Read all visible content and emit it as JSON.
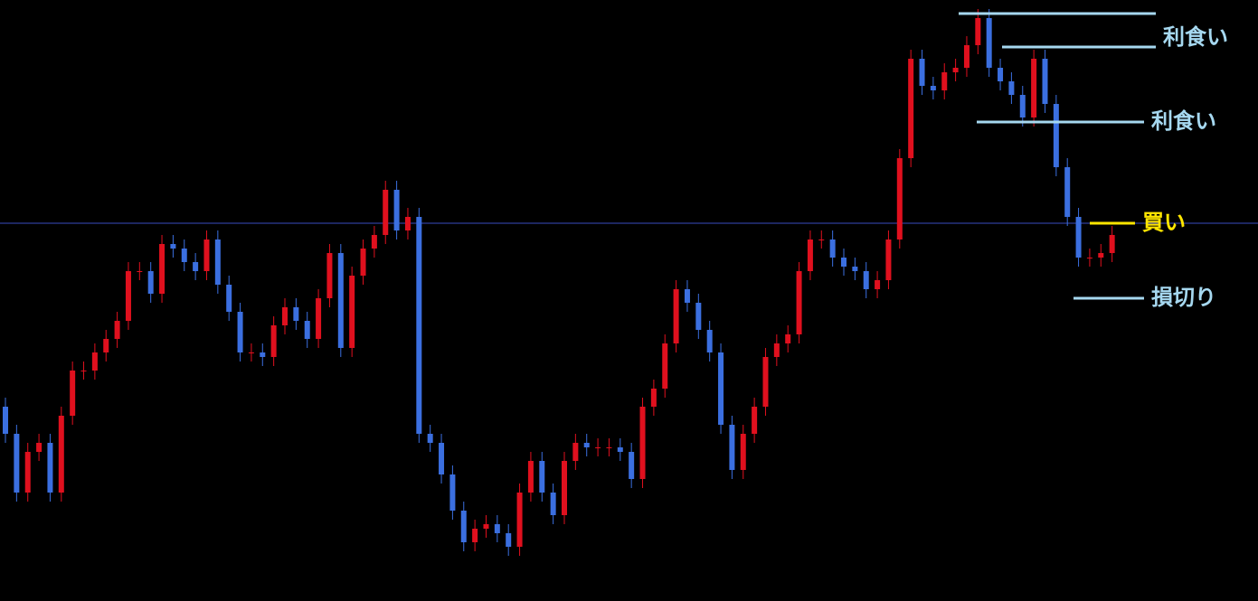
{
  "chart_data": {
    "type": "candlestick",
    "up_color": "#e0101e",
    "down_color": "#3b6fe0",
    "background": "#000000",
    "ylim": [
      0,
      665
    ],
    "open": [
      215,
      185,
      120,
      165,
      175,
      120,
      205,
      255,
      255,
      275,
      290,
      310,
      365,
      365,
      340,
      395,
      390,
      375,
      365,
      400,
      350,
      320,
      275,
      275,
      270,
      305,
      325,
      310,
      290,
      335,
      385,
      280,
      360,
      390,
      405,
      455,
      410,
      425,
      185,
      175,
      140,
      100,
      65,
      80,
      85,
      75,
      60,
      120,
      155,
      120,
      95,
      155,
      175,
      170,
      170,
      170,
      165,
      135,
      215,
      235,
      285,
      345,
      330,
      300,
      275,
      195,
      145,
      185,
      215,
      270,
      285,
      295,
      365,
      400,
      400,
      380,
      370,
      365,
      345,
      355,
      400,
      490,
      600,
      570,
      565,
      585,
      590,
      615,
      645,
      590,
      575,
      560,
      535,
      600,
      550,
      480,
      425,
      380,
      380,
      385
    ],
    "high": [
      225,
      195,
      175,
      185,
      185,
      215,
      265,
      265,
      285,
      300,
      320,
      375,
      375,
      375,
      405,
      405,
      400,
      385,
      410,
      410,
      360,
      330,
      285,
      285,
      315,
      335,
      335,
      320,
      345,
      395,
      395,
      370,
      400,
      415,
      465,
      465,
      435,
      435,
      195,
      185,
      150,
      110,
      90,
      95,
      95,
      85,
      130,
      165,
      165,
      130,
      165,
      185,
      185,
      180,
      180,
      180,
      175,
      225,
      245,
      295,
      355,
      355,
      340,
      310,
      285,
      205,
      195,
      225,
      280,
      295,
      305,
      375,
      410,
      410,
      410,
      390,
      380,
      375,
      365,
      410,
      500,
      610,
      610,
      580,
      595,
      600,
      625,
      655,
      655,
      600,
      585,
      570,
      610,
      610,
      560,
      490,
      435,
      390,
      395,
      415
    ],
    "low": [
      175,
      110,
      110,
      155,
      110,
      110,
      195,
      245,
      245,
      265,
      280,
      300,
      355,
      330,
      330,
      380,
      365,
      355,
      355,
      340,
      310,
      265,
      265,
      260,
      260,
      295,
      300,
      280,
      280,
      325,
      270,
      270,
      350,
      380,
      395,
      400,
      400,
      175,
      165,
      130,
      90,
      55,
      55,
      70,
      65,
      50,
      50,
      110,
      110,
      85,
      85,
      145,
      160,
      160,
      160,
      155,
      125,
      125,
      205,
      225,
      275,
      320,
      290,
      265,
      185,
      135,
      135,
      175,
      205,
      260,
      275,
      285,
      355,
      390,
      370,
      360,
      355,
      335,
      335,
      345,
      390,
      480,
      560,
      555,
      555,
      575,
      580,
      605,
      580,
      565,
      550,
      525,
      525,
      540,
      470,
      415,
      370,
      370,
      370,
      375
    ],
    "close": [
      185,
      120,
      165,
      175,
      120,
      205,
      255,
      255,
      275,
      290,
      310,
      365,
      365,
      340,
      395,
      390,
      375,
      365,
      400,
      350,
      320,
      275,
      275,
      270,
      305,
      325,
      310,
      290,
      335,
      385,
      280,
      360,
      390,
      405,
      455,
      410,
      425,
      185,
      175,
      140,
      100,
      65,
      80,
      85,
      75,
      60,
      120,
      155,
      120,
      95,
      155,
      175,
      170,
      170,
      170,
      165,
      135,
      215,
      235,
      285,
      345,
      330,
      300,
      275,
      195,
      145,
      185,
      215,
      270,
      285,
      295,
      365,
      400,
      400,
      380,
      370,
      365,
      345,
      355,
      400,
      490,
      600,
      570,
      565,
      585,
      590,
      615,
      645,
      590,
      575,
      560,
      535,
      600,
      550,
      480,
      425,
      380,
      380,
      385,
      405
    ],
    "price_line": {
      "value": 418,
      "color": "#3a4bc0"
    },
    "annotations": [
      {
        "value": 650,
        "color": "#a6d8f0"
      },
      {
        "value": 613,
        "label": "利食い",
        "color": "#a6d8f0"
      },
      {
        "value": 530,
        "label": "利食い",
        "color": "#a6d8f0"
      },
      {
        "value": 418,
        "label": "買い",
        "color": "#ffe600"
      },
      {
        "value": 335,
        "label": "損切り",
        "color": "#a6d8f0"
      }
    ]
  }
}
